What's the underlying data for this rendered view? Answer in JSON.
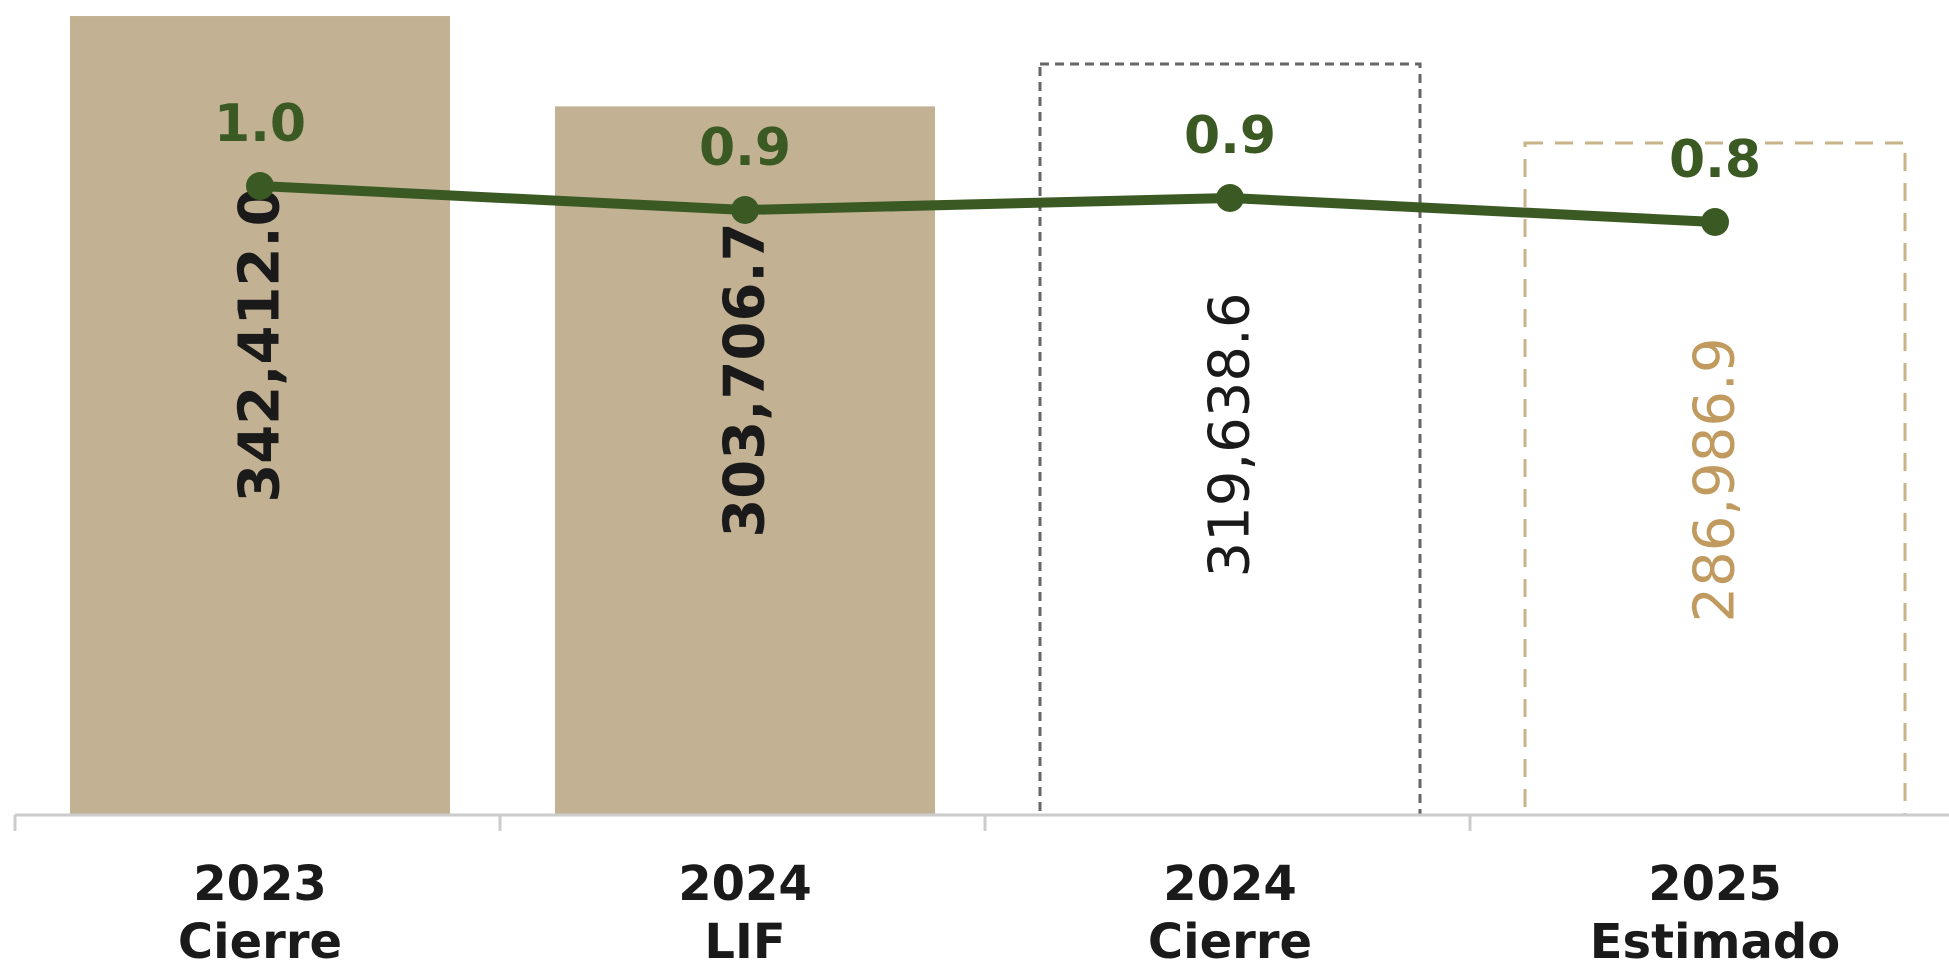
{
  "chart_data": {
    "type": "bar",
    "categories": [
      {
        "year": "2023",
        "label": "Cierre"
      },
      {
        "year": "2024",
        "label": "LIF"
      },
      {
        "year": "2024",
        "label": "Cierre"
      },
      {
        "year": "2025",
        "label": "Estimado"
      }
    ],
    "bars": [
      {
        "value": 342412.0,
        "display": "342,412.0",
        "style": "solid"
      },
      {
        "value": 303706.7,
        "display": "303,706.7",
        "style": "solid"
      },
      {
        "value": 319638.6,
        "display": "319,638.6",
        "style": "dashed-gray"
      },
      {
        "value": 286986.9,
        "display": "286,986.9",
        "style": "dashed-tan"
      }
    ],
    "line": {
      "values": [
        1.0,
        0.9,
        0.9,
        0.8
      ],
      "displays": [
        "1.0",
        "0.9",
        "0.9",
        "0.8"
      ],
      "plotted_levels": [
        1.0,
        0.97,
        0.985,
        0.955
      ]
    },
    "ylim_bars": [
      0,
      345000
    ],
    "title": "",
    "xlabel": "",
    "ylabel": "",
    "grid": false,
    "legend": "none",
    "colors": {
      "bar_fill": "#c2b293",
      "dashed_gray": "#666666",
      "dashed_tan": "#c9b48a",
      "line": "#3b5a23",
      "text_dark": "#1a1a1a",
      "label_tan": "#c09a5f",
      "axis": "#cccccc"
    }
  }
}
